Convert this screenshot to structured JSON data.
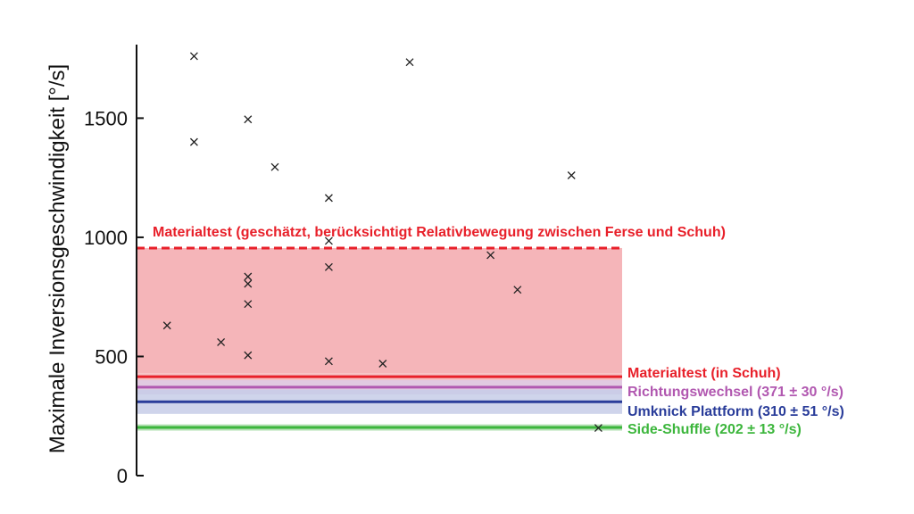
{
  "chart_data": {
    "type": "scatter",
    "ylabel": "Maximale Inversionsgeschwindigkeit [°/s]",
    "ylim": [
      0,
      1800
    ],
    "yticks": [
      0,
      500,
      1000,
      1500
    ],
    "ytick_labels": [
      "0",
      "500",
      "1000",
      "1500"
    ],
    "grid": false,
    "marker": "x",
    "points": [
      {
        "x": 1,
        "y": 630
      },
      {
        "x": 2,
        "y": 1400
      },
      {
        "x": 2,
        "y": 1760
      },
      {
        "x": 3,
        "y": 560
      },
      {
        "x": 4,
        "y": 505
      },
      {
        "x": 4,
        "y": 720
      },
      {
        "x": 4,
        "y": 805
      },
      {
        "x": 4,
        "y": 835
      },
      {
        "x": 4,
        "y": 1495
      },
      {
        "x": 5,
        "y": 1295
      },
      {
        "x": 7,
        "y": 480
      },
      {
        "x": 7,
        "y": 875
      },
      {
        "x": 7,
        "y": 985
      },
      {
        "x": 7,
        "y": 1165
      },
      {
        "x": 9,
        "y": 470
      },
      {
        "x": 10,
        "y": 1735
      },
      {
        "x": 13,
        "y": 925
      },
      {
        "x": 14,
        "y": 780
      },
      {
        "x": 16,
        "y": 1260
      },
      {
        "x": 17,
        "y": 200
      }
    ],
    "reference_bands": [
      {
        "label": "Materialtest (geschätzt, berücksichtigt Relativbewegung zwischen Ferse und Schuh)",
        "value": 955,
        "band_low": 430,
        "band_high": 955,
        "style": "dashed",
        "color": "#e8202a",
        "fill": "#f5b5b9"
      },
      {
        "label": "Materialtest (in Schuh)",
        "value": 415,
        "band_low": 400,
        "band_high": 430,
        "style": "solid",
        "color": "#e8202a",
        "fill": "#f5b5b9"
      },
      {
        "label": "Richtungswechsel (371 ± 30 °/s)",
        "value": 371,
        "band_low": 341,
        "band_high": 401,
        "style": "solid",
        "color": "#b158b0",
        "fill": "#dcc0dc"
      },
      {
        "label": "Umknick Plattform (310 ± 51 °/s)",
        "value": 310,
        "band_low": 259,
        "band_high": 361,
        "style": "solid",
        "color": "#2a3d9a",
        "fill": "#c7cde8"
      },
      {
        "label": "Side-Shuffle (202 ± 13 °/s)",
        "value": 202,
        "band_low": 189,
        "band_high": 215,
        "style": "solid",
        "color": "#3cb63c",
        "fill": "#a9dda9"
      }
    ]
  }
}
